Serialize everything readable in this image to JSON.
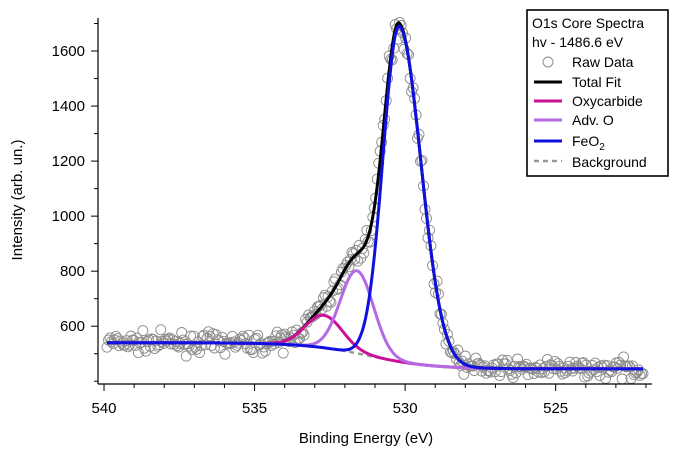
{
  "chart_data": {
    "type": "line",
    "title": "",
    "xlabel": "Binding Energy (eV)",
    "ylabel": "Intensity (arb. un.)",
    "xlim": [
      540.2,
      521.8
    ],
    "ylim": [
      390,
      1720
    ],
    "x_reversed": true,
    "x_ticks": [
      540,
      535,
      530,
      525
    ],
    "y_ticks": [
      600,
      800,
      1000,
      1200,
      1400,
      1600
    ],
    "legend": {
      "position": "top-right",
      "title_lines": [
        "O1s Core Spectra",
        "hv - 1486.6 eV"
      ],
      "entries": [
        {
          "label": "Raw Data",
          "style": "open-circle"
        },
        {
          "label": "Total Fit",
          "style": "line"
        },
        {
          "label": "Oxycarbide",
          "style": "line"
        },
        {
          "label": "Adv. O",
          "style": "line"
        },
        {
          "label": "FeO",
          "subscript": "2",
          "style": "line"
        },
        {
          "label": "Background",
          "style": "dashed-line"
        }
      ]
    },
    "x_range": [
      539.9,
      522.1
    ],
    "background": {
      "high": 540,
      "low": 445,
      "center": 531.2,
      "width": 1.05
    },
    "components": [
      {
        "name": "Oxycarbide",
        "center": 532.7,
        "amplitude": 118,
        "fwhm": 1.45,
        "color": "#cc1199"
      },
      {
        "name": "Adv. O",
        "center": 531.6,
        "amplitude": 300,
        "fwhm": 1.3,
        "color": "#b36ae2"
      },
      {
        "name": "FeO2",
        "center": 530.2,
        "amplitude": 1218,
        "fwhm": 1.25,
        "tail": 1.7,
        "color": "#1010e0"
      }
    ],
    "series": [
      {
        "name": "Raw Data",
        "color": "#8c8c8c"
      },
      {
        "name": "Total Fit",
        "color": "#000000"
      },
      {
        "name": "Oxycarbide",
        "color": "#cc1199"
      },
      {
        "name": "Adv. O",
        "color": "#b36ae2"
      },
      {
        "name": "FeO2",
        "color": "#1010e0"
      },
      {
        "name": "Background",
        "color": "#999999"
      }
    ],
    "raw_data": {
      "points": 360,
      "noise_amplitude": 22
    }
  }
}
